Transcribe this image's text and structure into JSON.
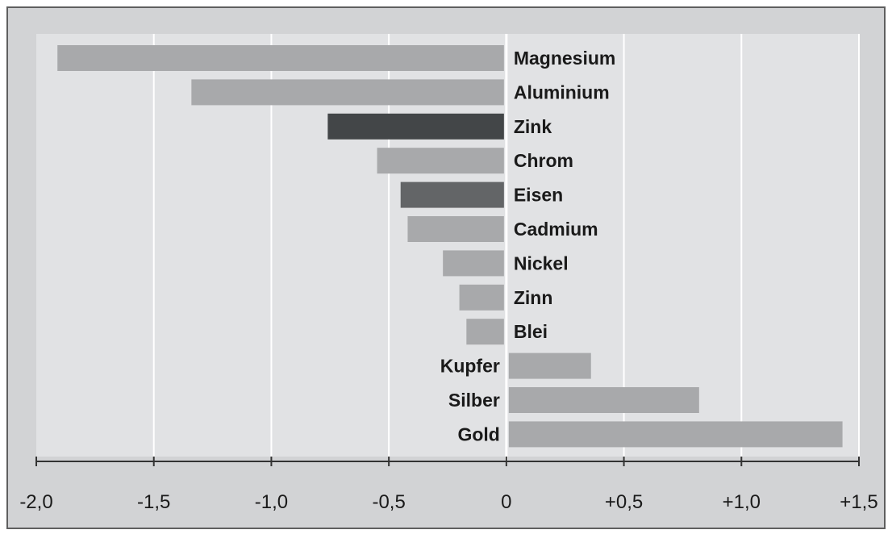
{
  "chart_data": {
    "type": "bar",
    "orientation": "horizontal",
    "categories": [
      "Magnesium",
      "Aluminium",
      "Zink",
      "Chrom",
      "Eisen",
      "Cadmium",
      "Nickel",
      "Zinn",
      "Blei",
      "Kupfer",
      "Silber",
      "Gold"
    ],
    "values": [
      -1.91,
      -1.34,
      -0.76,
      -0.55,
      -0.45,
      -0.42,
      -0.27,
      -0.2,
      -0.17,
      0.36,
      0.82,
      1.43
    ],
    "bar_colors": [
      "#a8a9ab",
      "#a8a9ab",
      "#434648",
      "#a8a9ab",
      "#636567",
      "#a8a9ab",
      "#a8a9ab",
      "#a8a9ab",
      "#a8a9ab",
      "#a8a9ab",
      "#a8a9ab",
      "#a8a9ab"
    ],
    "xlim": [
      -2.0,
      1.5
    ],
    "x_ticks": [
      -2.0,
      -1.5,
      -1.0,
      -0.5,
      0,
      0.5,
      1.0,
      1.5
    ],
    "x_tick_labels": [
      "-2,0",
      "-1,5",
      "-1,0",
      "-0,5",
      "0",
      "+0,5",
      "+1,0",
      "+1,5"
    ],
    "grid": true,
    "title": "",
    "xlabel": "",
    "ylabel": "",
    "colors": {
      "frame_background": "#d2d3d5",
      "plot_background": "#e1e2e4",
      "gridline": "#ffffff",
      "axis": "#333333"
    }
  }
}
